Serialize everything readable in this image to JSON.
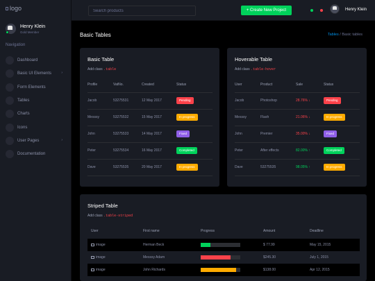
{
  "topbar": {
    "logo_text": "logo",
    "search_placeholder": "Search products",
    "create_label": "+ Create New Project",
    "user_name": "Henry Klein"
  },
  "sidebar": {
    "user_name": "Henry Klein",
    "user_role": "Gold Member",
    "nav_title": "Navigation",
    "items": [
      {
        "label": "Dashboard",
        "icon": "speedometer-icon",
        "arrow": false
      },
      {
        "label": "Basic UI Elements",
        "icon": "laptop-icon",
        "arrow": true
      },
      {
        "label": "Form Elements",
        "icon": "playlist-icon",
        "arrow": false
      },
      {
        "label": "Tables",
        "icon": "table-icon",
        "arrow": false
      },
      {
        "label": "Charts",
        "icon": "chart-icon",
        "arrow": false
      },
      {
        "label": "Icons",
        "icon": "contacts-icon",
        "arrow": false
      },
      {
        "label": "User Pages",
        "icon": "security-icon",
        "arrow": true
      },
      {
        "label": "Documentation",
        "icon": "file-document-icon",
        "arrow": false
      }
    ]
  },
  "page": {
    "title": "Basic Tables",
    "breadcrumb_link": "Tables",
    "breadcrumb_sep": "/",
    "breadcrumb_current": "Basic tables"
  },
  "colors": {
    "danger": "#fc424a",
    "warning": "#ffab00",
    "info": "#8f5fe8",
    "success": "#00d25b",
    "primary": "#0090e7"
  },
  "basic_table": {
    "title": "Basic Table",
    "desc_prefix": "Add class",
    "desc_code": ".table",
    "headers": [
      "Profile",
      "VatNo.",
      "Created",
      "Status"
    ],
    "rows": [
      {
        "profile": "Jacob",
        "vat": "53275531",
        "created": "12 May 2017",
        "status": "Pending",
        "status_color": "#fc424a"
      },
      {
        "profile": "Messsy",
        "vat": "53275532",
        "created": "15 May 2017",
        "status": "In progress",
        "status_color": "#ffab00"
      },
      {
        "profile": "John",
        "vat": "53275533",
        "created": "14 May 2017",
        "status": "Fixed",
        "status_color": "#8f5fe8"
      },
      {
        "profile": "Peter",
        "vat": "53275534",
        "created": "16 May 2017",
        "status": "Completed",
        "status_color": "#00d25b"
      },
      {
        "profile": "Dave",
        "vat": "53275535",
        "created": "20 May 2017",
        "status": "In progress",
        "status_color": "#ffab00"
      }
    ]
  },
  "hover_table": {
    "title": "Hoverable Table",
    "desc_prefix": "Add class",
    "desc_code": ".table-hover",
    "headers": [
      "User",
      "Product",
      "Sale",
      "Status"
    ],
    "rows": [
      {
        "user": "Jacob",
        "product": "Photoshop",
        "sale": "28.76%",
        "sale_dir": "down",
        "status": "Pending",
        "status_color": "#fc424a"
      },
      {
        "user": "Messsy",
        "product": "Flash",
        "sale": "21.06%",
        "sale_dir": "down",
        "status": "In progress",
        "status_color": "#ffab00"
      },
      {
        "user": "John",
        "product": "Premier",
        "sale": "35.00%",
        "sale_dir": "down",
        "status": "Fixed",
        "status_color": "#8f5fe8"
      },
      {
        "user": "Peter",
        "product": "After effects",
        "sale": "82.00%",
        "sale_dir": "up",
        "status": "Completed",
        "status_color": "#00d25b"
      },
      {
        "user": "Dave",
        "product": "53275535",
        "sale": "98.05%",
        "sale_dir": "up",
        "status": "In progress",
        "status_color": "#ffab00"
      }
    ]
  },
  "striped_table": {
    "title": "Striped Table",
    "desc_prefix": "Add class",
    "desc_code": ".table-striped",
    "headers": [
      "User",
      "First name",
      "Progress",
      "Amount",
      "Deadline"
    ],
    "rows": [
      {
        "user": "image",
        "first_name": "Herman Beck",
        "progress": 0.25,
        "progress_color": "#00d25b",
        "amount": "$ 77.99",
        "deadline": "May 15, 2015"
      },
      {
        "user": "image",
        "first_name": "Messsy Adam",
        "progress": 0.75,
        "progress_color": "#fc424a",
        "amount": "$245.30",
        "deadline": "July 1, 2015"
      },
      {
        "user": "image",
        "first_name": "John Richards",
        "progress": 0.9,
        "progress_color": "#ffab00",
        "amount": "$138.00",
        "deadline": "Apr 12, 2015"
      }
    ]
  }
}
